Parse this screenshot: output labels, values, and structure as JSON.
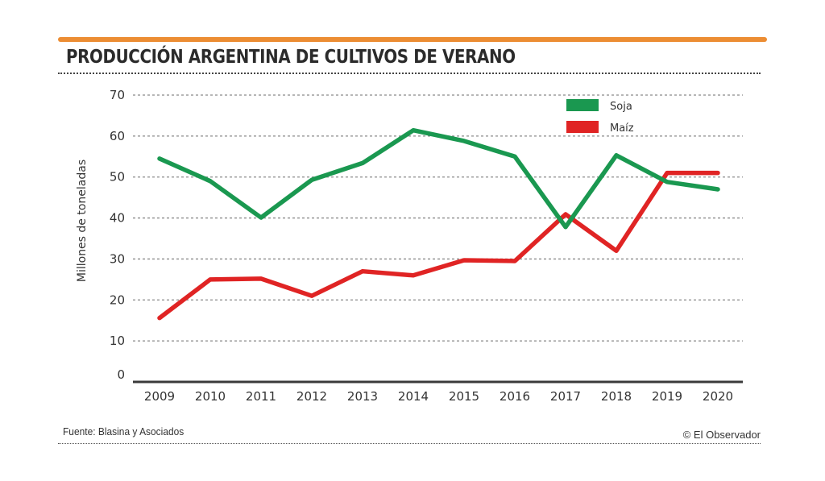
{
  "header": {
    "title": "PRODUCCIÓN ARGENTINA DE CULTIVOS DE VERANO",
    "accent_color": "#ec8d33"
  },
  "footer": {
    "source": "Fuente: Blasina y Asociados",
    "credit": "© El Observador"
  },
  "chart_data": {
    "type": "line",
    "title": "PRODUCCIÓN ARGENTINA DE CULTIVOS DE VERANO",
    "xlabel": "",
    "ylabel": "Millones de toneladas",
    "ylim": [
      0,
      70
    ],
    "yticks": [
      0,
      10,
      20,
      30,
      40,
      50,
      60,
      70
    ],
    "grid": true,
    "legend_position": "top-right",
    "categories": [
      "2009",
      "2010",
      "2011",
      "2012",
      "2013",
      "2014",
      "2015",
      "2016",
      "2017",
      "2018",
      "2019",
      "2020"
    ],
    "series": [
      {
        "name": "Soja",
        "color": "#1a9850",
        "values": [
          54.5,
          49.0,
          40.1,
          49.3,
          53.4,
          61.4,
          58.8,
          55.0,
          37.8,
          55.3,
          48.8,
          47.0
        ]
      },
      {
        "name": "Maíz",
        "color": "#e02424",
        "values": [
          15.6,
          25.0,
          25.2,
          21.0,
          27.0,
          26.0,
          29.7,
          29.5,
          40.9,
          32.0,
          51.0,
          51.0
        ]
      }
    ]
  }
}
